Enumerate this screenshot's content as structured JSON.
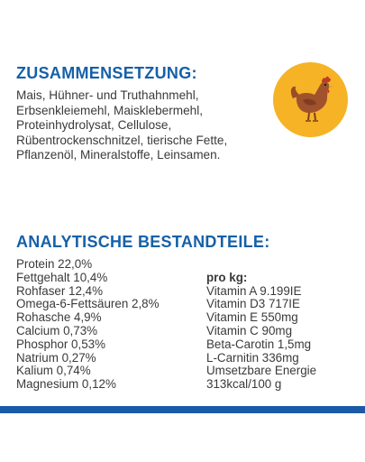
{
  "composition": {
    "heading": "ZUSAMMENSETZUNG:",
    "lines": [
      "Mais, Hühner- und Truthahnmehl,",
      "Erbsenkleiemehl, Maisklebermehl,",
      "Proteinhydrolysat, Cellulose,",
      "Rübentrockenschnitzel, tierische Fette,",
      "Pflanzenöl, Mineralstoffe, Leinsamen."
    ],
    "icon": "chicken-icon",
    "icon_bg_color": "#f6b326",
    "icon_fg_color": "#a0522d"
  },
  "analysis": {
    "heading": "ANALYTISCHE BESTANDTEILE:",
    "left": [
      "Protein 22,0%",
      "Fettgehalt 10,4%",
      "Rohfaser 12,4%",
      "Omega-6-Fettsäuren 2,8%",
      "Rohasche 4,9%",
      "Calcium 0,73%",
      "Phosphor 0,53%",
      "Natrium 0,27%",
      "Kalium 0,74%",
      "Magnesium 0,12%"
    ],
    "right_title": "pro kg:",
    "right": [
      "Vitamin A 9.199IE",
      "Vitamin D3 717IE",
      "Vitamin E 550mg",
      "Vitamin C 90mg",
      "Beta-Carotin 1,5mg",
      "L-Carnitin 336mg",
      "Umsetzbare Energie",
      "313kcal/100 g"
    ]
  },
  "colors": {
    "heading": "#1560a8",
    "text": "#3a3a3a",
    "band": "#1a5aa6"
  }
}
